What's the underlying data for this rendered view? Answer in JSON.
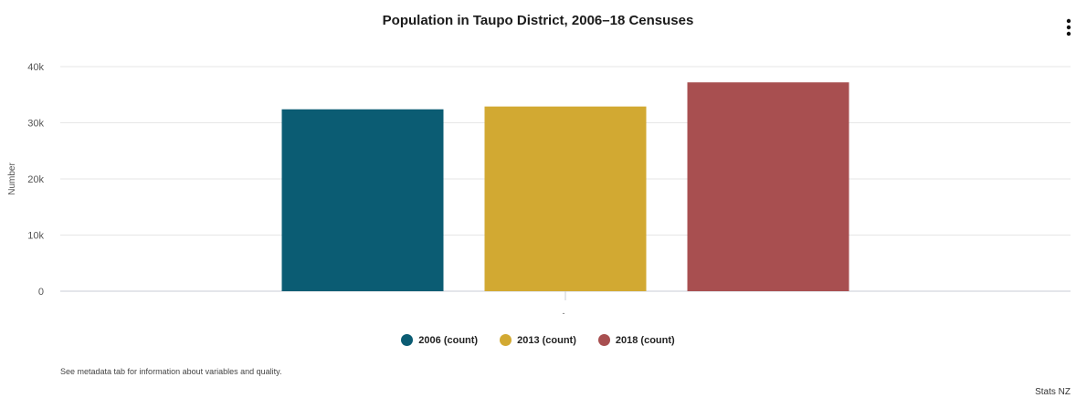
{
  "chart_data": {
    "type": "bar",
    "title": "Population in Taupo District, 2006–18 Censuses",
    "xlabel": "",
    "ylabel": "Number",
    "categories": [
      "-"
    ],
    "series": [
      {
        "name": "2006 (count)",
        "values": [
          32400
        ],
        "color": "#0b5c73"
      },
      {
        "name": "2013 (count)",
        "values": [
          32900
        ],
        "color": "#d2a932"
      },
      {
        "name": "2018 (count)",
        "values": [
          37200
        ],
        "color": "#a84f50"
      }
    ],
    "ylim": [
      0,
      40000
    ],
    "yticks": [
      0,
      10000,
      20000,
      30000,
      40000
    ],
    "ytick_labels": [
      "0",
      "10k",
      "20k",
      "30k",
      "40k"
    ],
    "grid": true,
    "legend_position": "bottom"
  },
  "menu_icon": "vertical-ellipsis-icon",
  "footnote": "See metadata tab for information about variables and quality.",
  "credit": "Stats NZ"
}
